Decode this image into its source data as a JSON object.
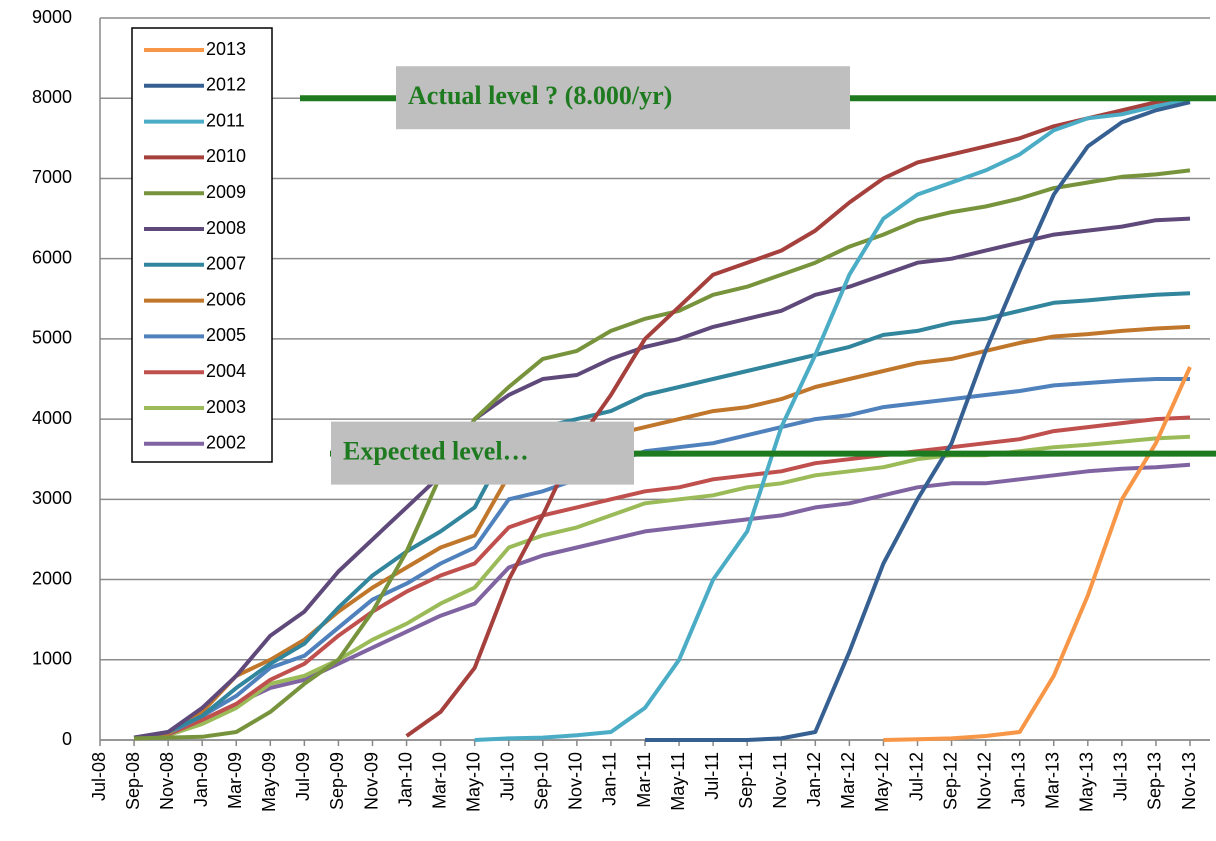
{
  "chart_data": {
    "type": "line",
    "categories": [
      "Jul-08",
      "Sep-08",
      "Nov-08",
      "Jan-09",
      "Mar-09",
      "May-09",
      "Jul-09",
      "Sep-09",
      "Nov-09",
      "Jan-10",
      "Mar-10",
      "May-10",
      "Jul-10",
      "Sep-10",
      "Nov-10",
      "Jan-11",
      "Mar-11",
      "May-11",
      "Jul-11",
      "Sep-11",
      "Nov-11",
      "Jan-12",
      "Mar-12",
      "May-12",
      "Jul-12",
      "Sep-12",
      "Nov-12",
      "Jan-13",
      "Mar-13",
      "May-13",
      "Jul-13",
      "Sep-13",
      "Nov-13"
    ],
    "ylim": [
      0,
      9000
    ],
    "yticks": [
      0,
      1000,
      2000,
      3000,
      4000,
      5000,
      6000,
      7000,
      8000,
      9000
    ],
    "grid": true,
    "legend": "upper left",
    "annotations": [
      {
        "text": "Actual level ? (8.000/yr)",
        "y": 8000,
        "color": "#1e7a1e"
      },
      {
        "text": "Expected level…",
        "y": 3570,
        "color": "#1e7a1e"
      }
    ],
    "series": [
      {
        "name": "2013",
        "color": "#f79646",
        "values": [
          null,
          null,
          null,
          null,
          null,
          null,
          null,
          null,
          null,
          null,
          null,
          null,
          null,
          null,
          null,
          null,
          null,
          null,
          null,
          null,
          null,
          null,
          null,
          0,
          10,
          20,
          50,
          100,
          800,
          1800,
          3000,
          3700,
          4650
        ]
      },
      {
        "name": "2012",
        "color": "#376092",
        "values": [
          null,
          null,
          null,
          null,
          null,
          null,
          null,
          null,
          null,
          null,
          null,
          null,
          null,
          null,
          null,
          null,
          0,
          0,
          0,
          0,
          20,
          100,
          1100,
          2200,
          3000,
          3700,
          4850,
          5850,
          6800,
          7400,
          7700,
          7850,
          7950
        ]
      },
      {
        "name": "2011",
        "color": "#4bacc6",
        "values": [
          null,
          null,
          null,
          null,
          null,
          null,
          null,
          null,
          null,
          null,
          null,
          0,
          20,
          30,
          60,
          100,
          400,
          1000,
          2000,
          2600,
          3900,
          4800,
          5800,
          6500,
          6800,
          6950,
          7100,
          7300,
          7600,
          7750,
          7800,
          7900,
          7980
        ]
      },
      {
        "name": "2010",
        "color": "#a5403d",
        "values": [
          null,
          null,
          null,
          null,
          null,
          null,
          null,
          null,
          null,
          50,
          350,
          900,
          2000,
          2800,
          3700,
          4300,
          5000,
          5400,
          5800,
          5950,
          6100,
          6350,
          6700,
          7000,
          7200,
          7300,
          7400,
          7500,
          7650,
          7750,
          7850,
          7950,
          8000
        ]
      },
      {
        "name": "2009",
        "color": "#77933c",
        "values": [
          null,
          20,
          30,
          40,
          100,
          350,
          700,
          1000,
          1600,
          2350,
          3300,
          4000,
          4400,
          4750,
          4850,
          5100,
          5250,
          5350,
          5550,
          5650,
          5800,
          5950,
          6150,
          6300,
          6480,
          6580,
          6650,
          6750,
          6880,
          6950,
          7020,
          7050,
          7100
        ]
      },
      {
        "name": "2008",
        "color": "#5f497a",
        "values": [
          null,
          30,
          100,
          400,
          800,
          1300,
          1600,
          2100,
          2500,
          2900,
          3300,
          4000,
          4300,
          4500,
          4550,
          4750,
          4900,
          5000,
          5150,
          5250,
          5350,
          5550,
          5650,
          5800,
          5950,
          6000,
          6100,
          6200,
          6300,
          6350,
          6400,
          6480,
          6500
        ]
      },
      {
        "name": "2007",
        "color": "#31859c",
        "values": [
          null,
          30,
          100,
          300,
          650,
          950,
          1200,
          1650,
          2050,
          2350,
          2600,
          2900,
          3700,
          3900,
          4000,
          4100,
          4300,
          4400,
          4500,
          4600,
          4700,
          4800,
          4900,
          5050,
          5100,
          5200,
          5250,
          5350,
          5450,
          5480,
          5520,
          5550,
          5570
        ]
      },
      {
        "name": "2006",
        "color": "#c0772b",
        "values": [
          null,
          30,
          80,
          350,
          800,
          1000,
          1250,
          1600,
          1900,
          2150,
          2400,
          2550,
          3300,
          3500,
          3650,
          3800,
          3900,
          4000,
          4100,
          4150,
          4250,
          4400,
          4500,
          4600,
          4700,
          4750,
          4850,
          4950,
          5030,
          5060,
          5100,
          5130,
          5150
        ]
      },
      {
        "name": "2005",
        "color": "#4f81bd",
        "values": [
          null,
          30,
          80,
          300,
          550,
          900,
          1050,
          1400,
          1750,
          1950,
          2200,
          2400,
          3000,
          3100,
          3250,
          3450,
          3600,
          3650,
          3700,
          3800,
          3900,
          4000,
          4050,
          4150,
          4200,
          4250,
          4300,
          4350,
          4420,
          4450,
          4480,
          4500,
          4500
        ]
      },
      {
        "name": "2004",
        "color": "#c0504d",
        "values": [
          null,
          20,
          70,
          250,
          450,
          750,
          950,
          1300,
          1600,
          1850,
          2050,
          2200,
          2650,
          2800,
          2900,
          3000,
          3100,
          3150,
          3250,
          3300,
          3350,
          3450,
          3500,
          3550,
          3600,
          3650,
          3700,
          3750,
          3850,
          3900,
          3950,
          4000,
          4020
        ]
      },
      {
        "name": "2003",
        "color": "#9bbb59",
        "values": [
          null,
          20,
          60,
          200,
          400,
          700,
          800,
          1000,
          1250,
          1450,
          1700,
          1900,
          2400,
          2550,
          2650,
          2800,
          2950,
          3000,
          3050,
          3150,
          3200,
          3300,
          3350,
          3400,
          3500,
          3550,
          3550,
          3600,
          3650,
          3680,
          3720,
          3760,
          3780
        ]
      },
      {
        "name": "2002",
        "color": "#8064a2",
        "values": [
          null,
          20,
          50,
          250,
          450,
          650,
          750,
          950,
          1150,
          1350,
          1550,
          1700,
          2150,
          2300,
          2400,
          2500,
          2600,
          2650,
          2700,
          2750,
          2800,
          2900,
          2950,
          3050,
          3150,
          3200,
          3200,
          3250,
          3300,
          3350,
          3380,
          3400,
          3430
        ]
      }
    ]
  }
}
